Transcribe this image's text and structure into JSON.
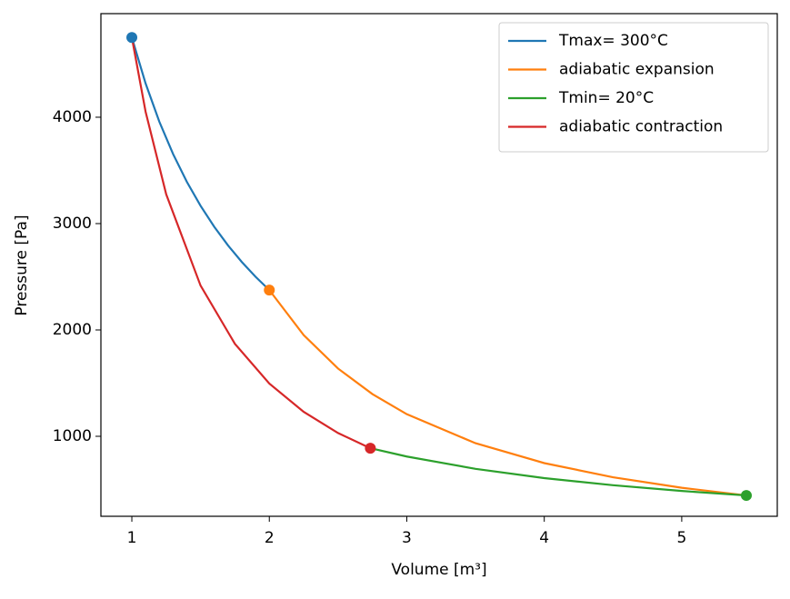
{
  "chart_data": {
    "type": "line",
    "xlabel": "Volume [m³]",
    "ylabel": "Pressure [Pa]",
    "xlim": [
      0.775,
      5.695
    ],
    "ylim": [
      248,
      4974
    ],
    "xticks": [
      1,
      2,
      3,
      4,
      5
    ],
    "yticks": [
      1000,
      2000,
      3000,
      4000
    ],
    "legend": "upper right",
    "markers": "start",
    "series": [
      {
        "name": "Tmax= 300°C",
        "color": "#1f77b4",
        "x": [
          1,
          1.1,
          1.2,
          1.3,
          1.4,
          1.5,
          1.6,
          1.7,
          1.8,
          1.9,
          2
        ],
        "values": [
          4750,
          4318,
          3958,
          3654,
          3393,
          3167,
          2969,
          2794,
          2639,
          2500,
          2375
        ]
      },
      {
        "name": "adiabatic expansion",
        "color": "#ff7f0e",
        "x": [
          2,
          2.25,
          2.5,
          2.75,
          3,
          3.5,
          4,
          4.5,
          5,
          5.47
        ],
        "values": [
          2375,
          1952,
          1637,
          1397,
          1208,
          935,
          748,
          615,
          516,
          444
        ]
      },
      {
        "name": "Tmin= 20°C",
        "color": "#2ca02c",
        "x": [
          5.47,
          5,
          4.5,
          4,
          3.5,
          3,
          2.735
        ],
        "values": [
          444,
          486,
          540,
          607,
          694,
          810,
          888
        ]
      },
      {
        "name": "adiabatic contraction",
        "color": "#d62728",
        "x": [
          2.735,
          2.5,
          2.25,
          2,
          1.75,
          1.5,
          1.25,
          1.1,
          1
        ],
        "values": [
          888,
          1031,
          1230,
          1496,
          1869,
          2417,
          3275,
          4052,
          4750
        ]
      }
    ]
  }
}
